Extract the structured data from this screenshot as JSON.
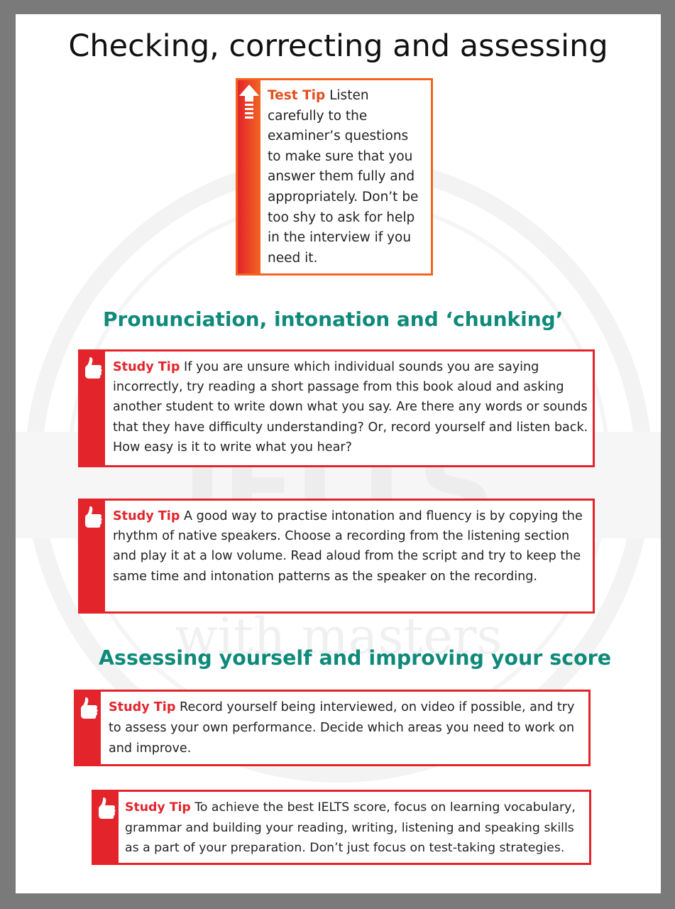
{
  "page": {
    "title": "Checking, correcting and assessing"
  },
  "test_tip": {
    "label": "Test Tip",
    "text": "Listen carefully to the examiner’s questions to make sure that you answer them fully and appropriately. Don’t be too shy to ask for help in the interview if you need it."
  },
  "sections": [
    {
      "heading": "Pronunciation, intonation and ‘chunking’"
    },
    {
      "heading": "Assessing yourself and improving your score"
    }
  ],
  "study_tips": [
    {
      "label": "Study Tip",
      "text": "If you are unsure which individual sounds you are saying incorrectly, try reading a short passage from this book aloud and asking another student to write down what you say. Are there any words or sounds that they have difficulty understanding? Or, record yourself and listen back. How easy is it to write what you hear?"
    },
    {
      "label": "Study Tip",
      "text": "A good way to practise intonation and fluency is by copying the rhythm of native speakers. Choose a recording from the listening section and play it at a low volume. Read aloud from the script and try to keep the same time and intonation patterns as the speaker on the recording."
    },
    {
      "label": "Study Tip",
      "text": "Record yourself being interviewed, on video if possible, and try to assess your own performance. Decide which areas you need to work on and improve."
    },
    {
      "label": "Study Tip",
      "text": "To achieve the best IELTS score, focus on learning vocabulary, grammar and building your reading, writing, listening and speaking skills as a part of your preparation. Don’t just focus on test-taking strategies."
    }
  ],
  "watermark": {
    "main": "IELTS",
    "sub": "with masters"
  },
  "colors": {
    "accent_red": "#e3242b",
    "heading_teal": "#0f8a7a",
    "test_tip_orange": "#f26522"
  }
}
